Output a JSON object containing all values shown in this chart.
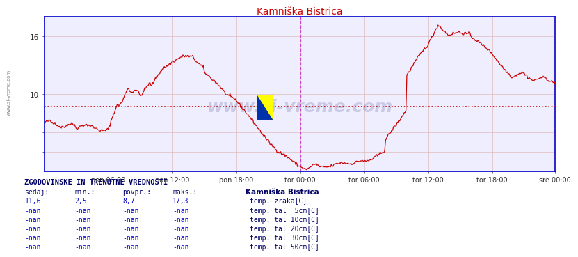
{
  "title": "Kamniška Bistrica",
  "title_color": "#cc0000",
  "bg_color": "#ffffff",
  "plot_bg_color": "#eeeeff",
  "grid_color": "#ddbbbb",
  "axis_color": "#0000cc",
  "tick_color": "#555555",
  "line_color": "#cc0000",
  "avg_line_color": "#cc0000",
  "avg_line_value": 8.7,
  "vline_color": "#cc44cc",
  "ylim": [
    2,
    18
  ],
  "ytick_positions": [
    4,
    6,
    8,
    10,
    12,
    14,
    16
  ],
  "ytick_labels": [
    "",
    "",
    "",
    "10",
    "",
    "",
    "16"
  ],
  "xtick_labels": [
    "pon 06:00",
    "pon 12:00",
    "pon 18:00",
    "tor 00:00",
    "tor 06:00",
    "tor 12:00",
    "tor 18:00",
    "sre 00:00"
  ],
  "n_points": 576,
  "legend_title": "Kamniška Bistrica",
  "table_header": "ZGODOVINSKE IN TRENUTNE VREDNOSTI",
  "table_cols": [
    "sedaj:",
    "min.:",
    "povpr.:",
    "maks.:"
  ],
  "table_row1": [
    "11,6",
    "2,5",
    "8,7",
    "17,3"
  ],
  "legend_items": [
    {
      "label": "temp. zraka[C]",
      "color": "#cc0000"
    },
    {
      "label": "temp. tal  5cm[C]",
      "color": "#bbbbbb"
    },
    {
      "label": "temp. tal 10cm[C]",
      "color": "#cc8800"
    },
    {
      "label": "temp. tal 20cm[C]",
      "color": "#ccaa00"
    },
    {
      "label": "temp. tal 30cm[C]",
      "color": "#556633"
    },
    {
      "label": "temp. tal 50cm[C]",
      "color": "#7a3300"
    }
  ],
  "left_label": "www.si-vreme.com",
  "left_label_color": "#888888",
  "watermark_text": "www.si-vreme.com",
  "watermark_color": "#8888bb",
  "watermark_alpha": 0.35
}
